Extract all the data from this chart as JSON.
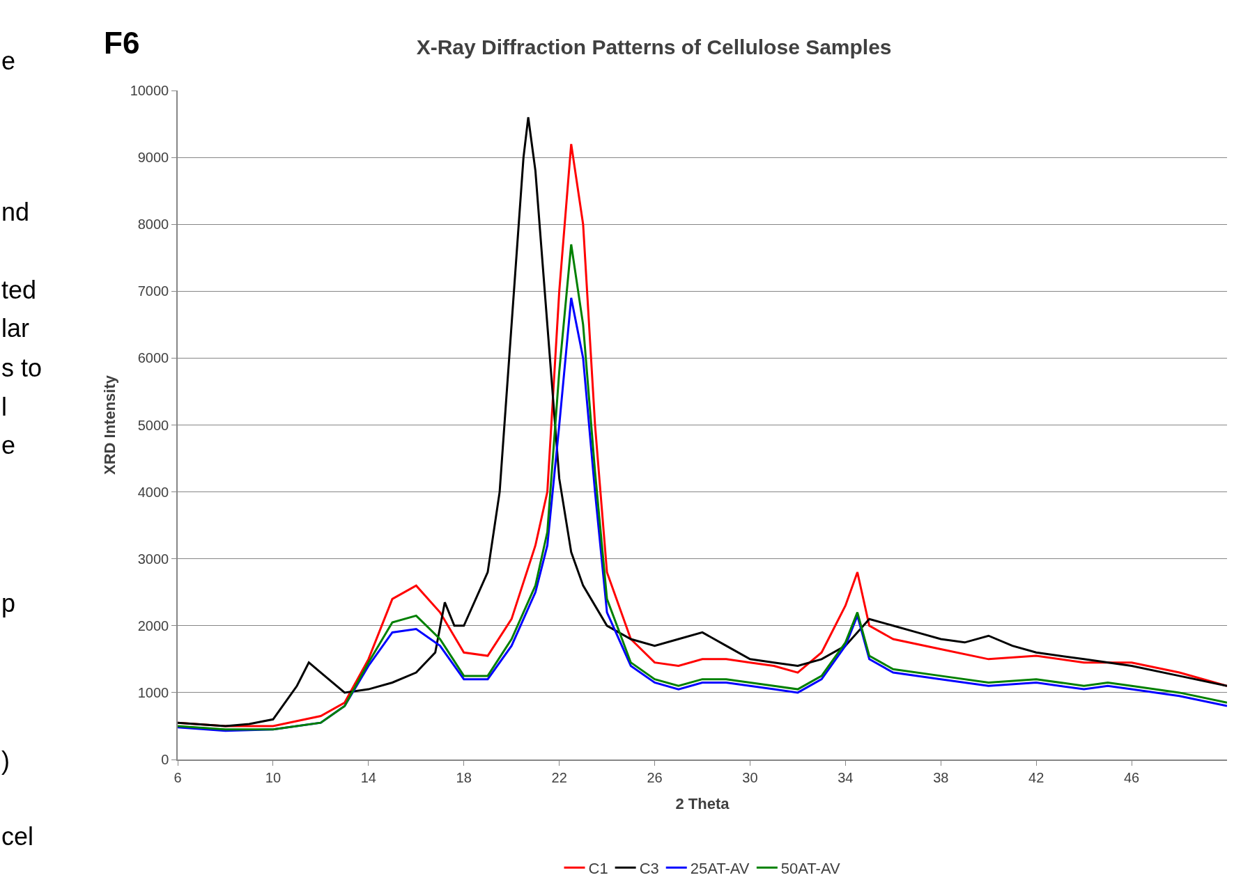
{
  "chart_data": {
    "type": "line",
    "title": "X-Ray Diffraction Patterns of Cellulose Samples",
    "xlabel": "2 Theta",
    "ylabel": "XRD Intensity",
    "annotations": [
      "F6",
      "e",
      "nd",
      "ted",
      "lar",
      "s to",
      "l",
      "e",
      "p",
      ")",
      "cel"
    ],
    "xlim": [
      6,
      50
    ],
    "xticks": [
      6,
      10,
      14,
      18,
      22,
      26,
      30,
      34,
      38,
      42,
      46
    ],
    "ylim": [
      0,
      10000
    ],
    "yticks": [
      0,
      1000,
      2000,
      3000,
      4000,
      5000,
      6000,
      7000,
      8000,
      9000,
      10000
    ],
    "grid": "y",
    "legend": "bottom",
    "marker": "none",
    "line_style": "solid",
    "series": [
      {
        "name": "C1",
        "color": "#ff0000",
        "x": [
          6,
          8,
          10,
          12,
          13,
          14,
          15,
          16,
          17,
          18,
          19,
          20,
          21,
          21.5,
          22,
          22.5,
          23,
          23.5,
          24,
          25,
          26,
          27,
          28,
          29,
          30,
          31,
          32,
          33,
          34,
          34.5,
          35,
          36,
          38,
          40,
          42,
          44,
          46,
          48,
          50
        ],
        "values": [
          550,
          500,
          500,
          650,
          850,
          1500,
          2400,
          2600,
          2200,
          1600,
          1550,
          2100,
          3200,
          4000,
          7000,
          9200,
          8000,
          5000,
          2800,
          1800,
          1450,
          1400,
          1500,
          1500,
          1450,
          1400,
          1300,
          1600,
          2300,
          2800,
          2000,
          1800,
          1650,
          1500,
          1550,
          1450,
          1450,
          1300,
          1100
        ]
      },
      {
        "name": "C3",
        "color": "#000000",
        "x": [
          6,
          8,
          9,
          10,
          11,
          11.5,
          12,
          13,
          14,
          15,
          16,
          16.8,
          17.2,
          17.6,
          18,
          19,
          19.5,
          20,
          20.5,
          20.7,
          21,
          21.5,
          22,
          22.5,
          23,
          24,
          25,
          26,
          27,
          28,
          29,
          30,
          31,
          32,
          33,
          34,
          35,
          36,
          37,
          38,
          39,
          40,
          41,
          42,
          44,
          46,
          48,
          50
        ],
        "values": [
          550,
          500,
          530,
          600,
          1100,
          1450,
          1300,
          1000,
          1050,
          1150,
          1300,
          1600,
          2350,
          2000,
          2000,
          2800,
          4000,
          6500,
          9000,
          9600,
          8800,
          6500,
          4200,
          3100,
          2600,
          2000,
          1800,
          1700,
          1800,
          1900,
          1700,
          1500,
          1450,
          1400,
          1500,
          1700,
          2100,
          2000,
          1900,
          1800,
          1750,
          1850,
          1700,
          1600,
          1500,
          1400,
          1250,
          1100
        ]
      },
      {
        "name": "25AT-AV",
        "color": "#0000ff",
        "x": [
          6,
          8,
          10,
          12,
          13,
          14,
          15,
          16,
          17,
          18,
          19,
          20,
          21,
          21.5,
          22,
          22.5,
          23,
          23.5,
          24,
          25,
          26,
          27,
          28,
          29,
          30,
          31,
          32,
          33,
          34,
          34.5,
          35,
          36,
          38,
          40,
          42,
          44,
          45,
          46,
          48,
          50
        ],
        "values": [
          480,
          430,
          450,
          550,
          800,
          1400,
          1900,
          1950,
          1700,
          1200,
          1200,
          1700,
          2500,
          3200,
          5000,
          6900,
          6000,
          4000,
          2200,
          1400,
          1150,
          1050,
          1150,
          1150,
          1100,
          1050,
          1000,
          1200,
          1700,
          2150,
          1500,
          1300,
          1200,
          1100,
          1150,
          1050,
          1100,
          1050,
          950,
          800
        ]
      },
      {
        "name": "50AT-AV",
        "color": "#008000",
        "x": [
          6,
          8,
          10,
          12,
          13,
          14,
          15,
          16,
          17,
          18,
          19,
          20,
          21,
          21.5,
          22,
          22.5,
          23,
          23.5,
          24,
          25,
          26,
          27,
          28,
          29,
          30,
          31,
          32,
          33,
          34,
          34.5,
          35,
          36,
          38,
          40,
          42,
          44,
          45,
          46,
          48,
          50
        ],
        "values": [
          500,
          450,
          450,
          550,
          800,
          1450,
          2050,
          2150,
          1800,
          1250,
          1250,
          1800,
          2600,
          3400,
          5800,
          7700,
          6500,
          4300,
          2400,
          1450,
          1200,
          1100,
          1200,
          1200,
          1150,
          1100,
          1050,
          1250,
          1750,
          2200,
          1550,
          1350,
          1250,
          1150,
          1200,
          1100,
          1150,
          1100,
          1000,
          850
        ]
      }
    ]
  }
}
